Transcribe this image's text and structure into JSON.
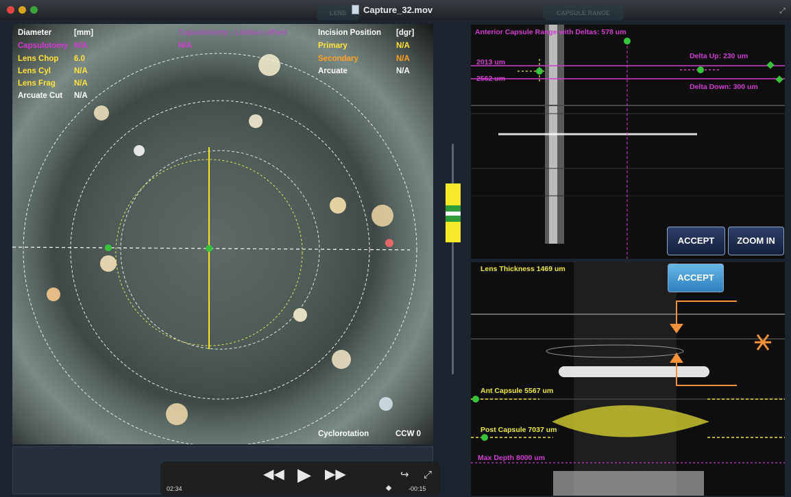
{
  "window": {
    "title": "Capture_32.mov",
    "ghost_tabs": [
      "LENS",
      "CAPSULE RANGE"
    ]
  },
  "overlay": {
    "diameter_label": "Diameter",
    "diameter_unit": "[mm]",
    "capsulotomy_label": "Capsulotomy",
    "capsulotomy_value": "N/A",
    "lens_chop_label": "Lens Chop",
    "lens_chop_value": "6.0",
    "lens_cyl_label": "Lens Cyl",
    "lens_cyl_value": "N/A",
    "lens_frag_label": "Lens Frag",
    "lens_frag_value": "N/A",
    "arcuate_cut_label": "Arcuate Cut",
    "arcuate_cut_value": "N/A",
    "offset_label": "Capsulotomy - Limbus offset",
    "offset_value": "N/A",
    "incision_label": "Incision Position",
    "incision_unit": "[dgr]",
    "primary_label": "Primary",
    "primary_value": "N/A",
    "secondary_label": "Secondary",
    "secondary_value": "N/A",
    "arcuate_label": "Arcuate",
    "arcuate_value": "N/A",
    "cyclorotation_label": "Cyclorotation",
    "cyclorotation_value": "CCW 0"
  },
  "player": {
    "elapsed": "02:34",
    "remaining": "-00:15"
  },
  "capsule_panel": {
    "title": "Anterior Capsule Range with Deltas: 578 um",
    "upper_depth": "2013 um",
    "lower_depth": "2562 um",
    "delta_up": "Delta Up: 230 um",
    "delta_down": "Delta Down: 300 um",
    "accept_label": "ACCEPT",
    "zoom_label": "ZOOM IN"
  },
  "lens_panel": {
    "thickness": "Lens Thickness 1469 um",
    "accept_label": "ACCEPT",
    "ant_capsule": "Ant Capsule 5567 um",
    "post_capsule": "Post Capsule 7037 um",
    "max_depth": "Max Depth 8000 um"
  },
  "colors": {
    "magenta": "#d23dd2",
    "yellow": "#f0ea46",
    "orange": "#ffa11f",
    "green": "#37c43c"
  }
}
